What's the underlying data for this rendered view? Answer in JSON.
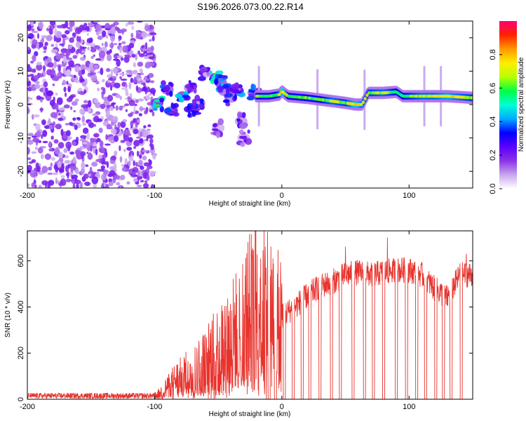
{
  "title": "S196.2026.073.00.22.R14",
  "colors": {
    "snr_line": "#e8332d",
    "bg": "#ffffff",
    "axis": "#000000"
  },
  "chart_data": [
    {
      "type": "heatmap",
      "name": "spectrogram",
      "xlabel": "Height of straight line (km)",
      "ylabel": "Frequency (Hz)",
      "xlim": [
        -200,
        150
      ],
      "ylim": [
        -25,
        25
      ],
      "xticks": [
        -200,
        -100,
        0,
        100
      ],
      "xtick_labels": [
        "-200",
        "-100",
        "0",
        "100"
      ],
      "yticks": [
        -20,
        -10,
        0,
        10,
        20
      ],
      "ytick_labels": [
        "-20",
        "-10",
        "0",
        "10",
        "20"
      ],
      "colorbar": {
        "label": "Normalized spectral amplitude",
        "range": [
          0,
          1
        ],
        "ticks": [
          0.0,
          0.2,
          0.4,
          0.6,
          0.8
        ],
        "tick_labels": [
          "0.0",
          "0.2",
          "0.4",
          "0.6",
          "0.8"
        ],
        "stops": [
          "#ffffff",
          "#c9a6f0",
          "#8a33e6",
          "#5a00ff",
          "#0000ff",
          "#00aaff",
          "#00ffd5",
          "#00ff44",
          "#b8ff00",
          "#ffee00",
          "#ff9900",
          "#ff2200",
          "#ff0077"
        ]
      },
      "noise_region": {
        "x_range": [
          -200,
          -100
        ],
        "f_range": [
          -25,
          25
        ],
        "amplitude": 0.1
      },
      "transition_blobs": [
        {
          "x": -98,
          "f": 0.5,
          "amp": 0.5
        },
        {
          "x": -90,
          "f": 4.5,
          "amp": 0.4
        },
        {
          "x": -87,
          "f": -2.0,
          "amp": 0.35
        },
        {
          "x": -78,
          "f": 2.5,
          "amp": 0.45
        },
        {
          "x": -72,
          "f": 5.0,
          "amp": 0.3
        },
        {
          "x": -70,
          "f": -1.5,
          "amp": 0.3
        },
        {
          "x": -65,
          "f": 0.5,
          "amp": 0.3
        },
        {
          "x": -60,
          "f": 9.5,
          "amp": 0.25
        },
        {
          "x": -52,
          "f": 8.0,
          "amp": 0.5
        },
        {
          "x": -48,
          "f": 6.5,
          "amp": 0.4
        },
        {
          "x": -45,
          "f": 4.0,
          "amp": 0.35
        },
        {
          "x": -40,
          "f": 2.0,
          "amp": 0.3
        },
        {
          "x": -35,
          "f": 4.0,
          "amp": 0.35
        },
        {
          "x": -32,
          "f": -5.0,
          "amp": 0.25
        },
        {
          "x": -30,
          "f": -10.0,
          "amp": 0.2
        },
        {
          "x": -50,
          "f": -7.0,
          "amp": 0.2
        },
        {
          "x": -22,
          "f": 3.5,
          "amp": 0.35
        }
      ],
      "ridge": {
        "x": [
          -20,
          -10,
          -2,
          0,
          5,
          20,
          30,
          40,
          50,
          58,
          63,
          68,
          80,
          90,
          95,
          110,
          120,
          130,
          150
        ],
        "f": [
          2.5,
          2.5,
          3.0,
          4.0,
          2.5,
          2.0,
          1.5,
          1.0,
          0.5,
          0.0,
          0.0,
          3.5,
          3.5,
          3.8,
          2.5,
          2.5,
          2.5,
          2.5,
          2.0
        ],
        "amp": [
          0.6,
          0.55,
          0.65,
          0.85,
          0.6,
          0.6,
          0.6,
          0.7,
          0.65,
          0.8,
          0.7,
          0.65,
          0.7,
          0.6,
          0.6,
          0.7,
          0.7,
          0.75,
          0.65
        ]
      },
      "ridge_streaks": [
        -18,
        28,
        65,
        112,
        125
      ]
    },
    {
      "type": "line",
      "name": "snr",
      "xlabel": "Height of straight line (km)",
      "ylabel": "SNR (10 * v/v)",
      "xlim": [
        -200,
        150
      ],
      "ylim": [
        0,
        730
      ],
      "xticks": [
        -200,
        -100,
        0,
        100
      ],
      "xtick_labels": [
        "-200",
        "-100",
        "0",
        "100"
      ],
      "yticks": [
        0,
        200,
        400,
        600
      ],
      "ytick_labels": [
        "0",
        "200",
        "400",
        "600"
      ],
      "envelope": {
        "x": [
          -200,
          -100,
          -95,
          -85,
          -75,
          -65,
          -55,
          -45,
          -35,
          -28,
          -20,
          -15,
          -10,
          -5,
          0,
          10,
          20,
          30,
          40,
          50,
          60,
          70,
          80,
          90,
          100,
          110,
          120,
          130,
          140,
          150
        ],
        "snr": [
          15,
          15,
          30,
          80,
          110,
          140,
          190,
          250,
          300,
          360,
          420,
          440,
          400,
          360,
          360,
          400,
          450,
          490,
          510,
          540,
          550,
          540,
          550,
          560,
          560,
          540,
          480,
          440,
          540,
          540
        ]
      },
      "spikes": [
        {
          "x": -14,
          "snr": 730
        },
        {
          "x": 50,
          "snr": 660
        },
        {
          "x": 83,
          "snr": 700
        },
        {
          "x": 145,
          "snr": 630
        }
      ],
      "dropouts": [
        -10,
        -5,
        2,
        9,
        16,
        22,
        30,
        39,
        46,
        56,
        65,
        72,
        80,
        90,
        98,
        106,
        113,
        121,
        127,
        133,
        141
      ]
    }
  ]
}
